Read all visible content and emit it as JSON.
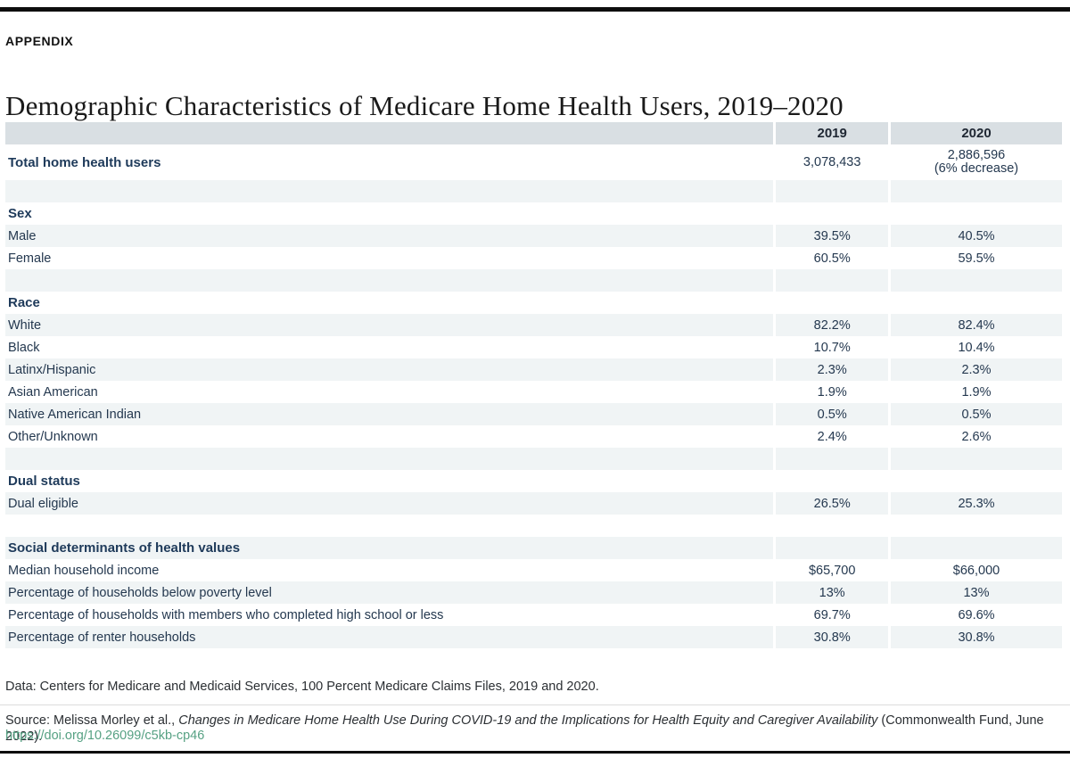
{
  "page": {
    "appendix_label": "APPENDIX",
    "title": "Demographic Characteristics of Medicare Home Health Users, 2019–2020"
  },
  "colors": {
    "top_rule": "#0d0d0d",
    "table_header_bg": "#d9dfe3",
    "stripe_bg": "#f0f4f5",
    "label_navy": "#1e3a5a",
    "link_teal": "#56a183"
  },
  "table": {
    "columns": {
      "label": "",
      "y2019": "2019",
      "y2020": "2020"
    },
    "rows": [
      {
        "label": "Total home health users",
        "v2019": "3,078,433",
        "v2020": "2,886,596",
        "v2020_note": "(6% decrease)"
      },
      {
        "label": ""
      },
      {
        "label": "Sex"
      },
      {
        "label": "Male",
        "v2019": "39.5%",
        "v2020": "40.5%"
      },
      {
        "label": "Female",
        "v2019": "60.5%",
        "v2020": "59.5%"
      },
      {
        "label": ""
      },
      {
        "label": "Race"
      },
      {
        "label": "White",
        "v2019": "82.2%",
        "v2020": "82.4%"
      },
      {
        "label": "Black",
        "v2019": "10.7%",
        "v2020": "10.4%"
      },
      {
        "label": "Latinx/Hispanic",
        "v2019": "2.3%",
        "v2020": "2.3%"
      },
      {
        "label": "Asian American",
        "v2019": "1.9%",
        "v2020": "1.9%"
      },
      {
        "label": "Native American Indian",
        "v2019": "0.5%",
        "v2020": "0.5%"
      },
      {
        "label": "Other/Unknown",
        "v2019": "2.4%",
        "v2020": "2.6%"
      },
      {
        "label": ""
      },
      {
        "label": "Dual status"
      },
      {
        "label": "Dual eligible",
        "v2019": "26.5%",
        "v2020": "25.3%"
      },
      {
        "label": ""
      },
      {
        "label": "Social determinants of health values"
      },
      {
        "label": "Median household income",
        "v2019": "$65,700",
        "v2020": "$66,000"
      },
      {
        "label": "Percentage of households below poverty level",
        "v2019": "13%",
        "v2020": "13%"
      },
      {
        "label": "Percentage of households with members who completed high school or less",
        "v2019": "69.7%",
        "v2020": "69.6%"
      },
      {
        "label": "Percentage of renter households",
        "v2019": "30.8%",
        "v2020": "30.8%"
      }
    ]
  },
  "footer": {
    "data_note": "Data: Centers for Medicare and Medicaid Services, 100 Percent Medicare Claims Files, 2019 and 2020.",
    "source_prefix": "Source: Melissa Morley et al., ",
    "source_italic": "Changes in Medicare Home Health Use During COVID-19 and the Implications for Health Equity and Caregiver Availability",
    "source_suffix": " (Commonwealth Fund, June 2022).",
    "doi_link": "https://doi.org/10.26099/c5kb-cp46"
  }
}
